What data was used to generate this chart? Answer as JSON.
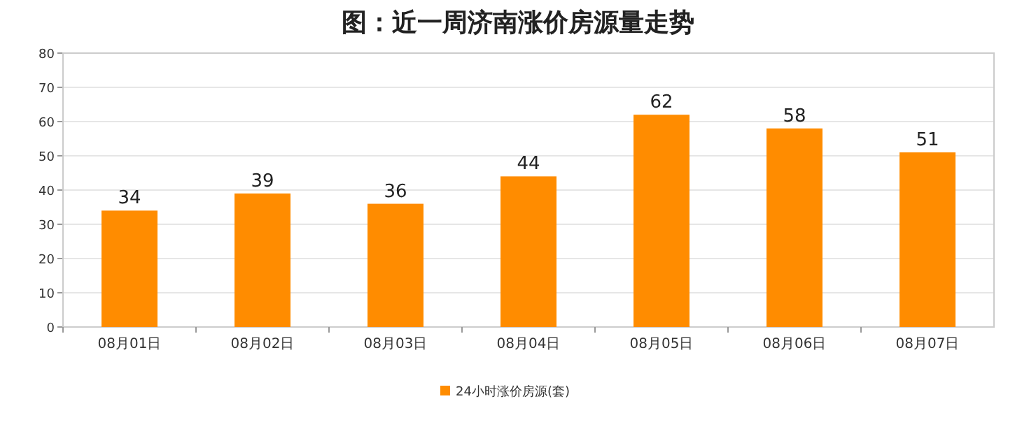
{
  "chart_data": {
    "type": "bar",
    "title": "图：近一周济南涨价房源量走势",
    "categories": [
      "08月01日",
      "08月02日",
      "08月03日",
      "08月04日",
      "08月05日",
      "08月06日",
      "08月07日"
    ],
    "series": [
      {
        "name": "24小时涨价房源(套)",
        "color": "#ff8c00",
        "values": [
          34,
          39,
          36,
          44,
          62,
          58,
          51
        ]
      }
    ],
    "ylim": [
      0,
      80
    ],
    "yticks": [
      0,
      10,
      20,
      30,
      40,
      50,
      60,
      70,
      80
    ],
    "grid": "y",
    "legend": "bottom",
    "data_labels": true
  }
}
